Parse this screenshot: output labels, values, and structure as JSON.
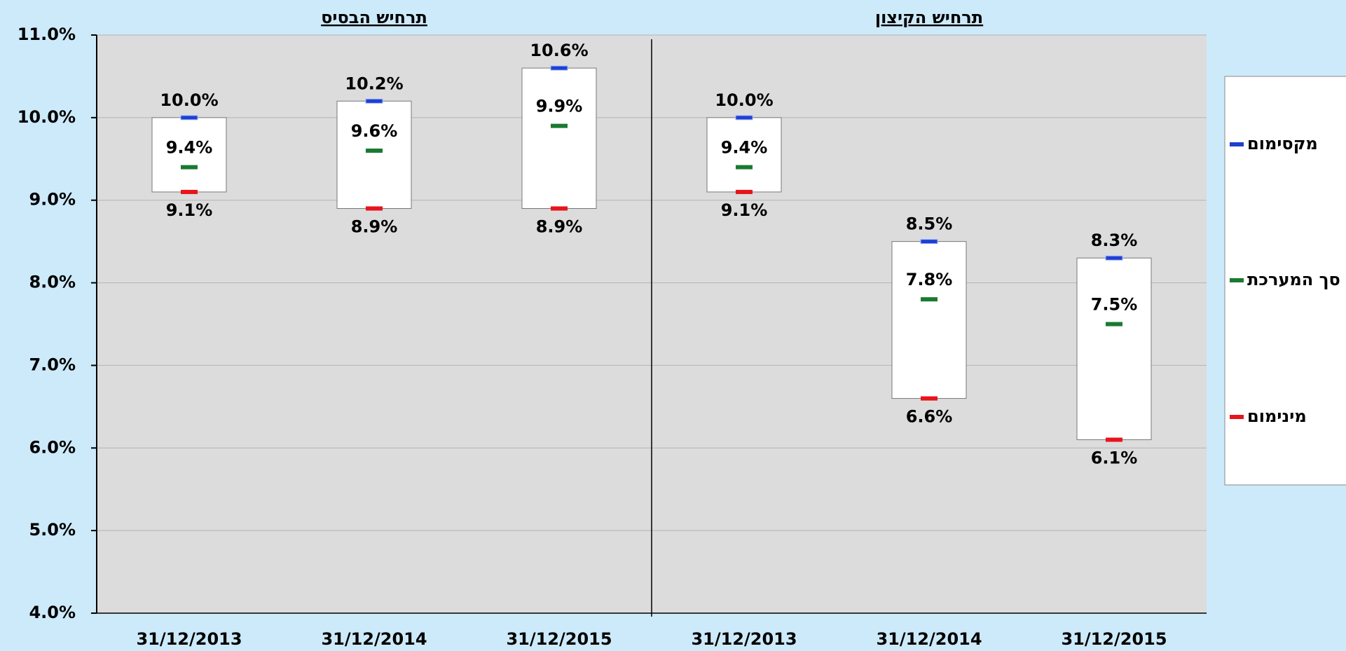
{
  "chart_data": {
    "type": "highlow",
    "groups": [
      "תרחיש הבסיס",
      "תרחיש הקיצון"
    ],
    "categories": [
      "31/12/2013",
      "31/12/2014",
      "31/12/2015",
      "31/12/2013",
      "31/12/2014",
      "31/12/2015"
    ],
    "series": [
      {
        "name": "מקסימום",
        "color": "#1f3fd0",
        "values": [
          10.0,
          10.2,
          10.6,
          10.0,
          8.5,
          8.3
        ],
        "value_labels": [
          "10.0%",
          "10.2%",
          "10.6%",
          "10.0%",
          "8.5%",
          "8.3%"
        ]
      },
      {
        "name": "סך המערכת",
        "color": "#1a7a30",
        "values": [
          9.4,
          9.6,
          9.9,
          9.4,
          7.8,
          7.5
        ],
        "value_labels": [
          "9.4%",
          "9.6%",
          "9.9%",
          "9.4%",
          "7.8%",
          "7.5%"
        ]
      },
      {
        "name": "מינימום",
        "color": "#e8141b",
        "values": [
          9.1,
          8.9,
          8.9,
          9.1,
          6.6,
          6.1
        ],
        "value_labels": [
          "9.1%",
          "8.9%",
          "8.9%",
          "9.1%",
          "6.6%",
          "6.1%"
        ]
      }
    ],
    "ylim": [
      4,
      11
    ],
    "yticks": [
      {
        "value": 4,
        "label": "4.0%"
      },
      {
        "value": 5,
        "label": "5.0%"
      },
      {
        "value": 6,
        "label": "6.0%"
      },
      {
        "value": 7,
        "label": "7.0%"
      },
      {
        "value": 8,
        "label": "8.0%"
      },
      {
        "value": 9,
        "label": "9.0%"
      },
      {
        "value": 10,
        "label": "10.0%"
      },
      {
        "value": 11,
        "label": "11.0%"
      }
    ],
    "grid": true
  }
}
